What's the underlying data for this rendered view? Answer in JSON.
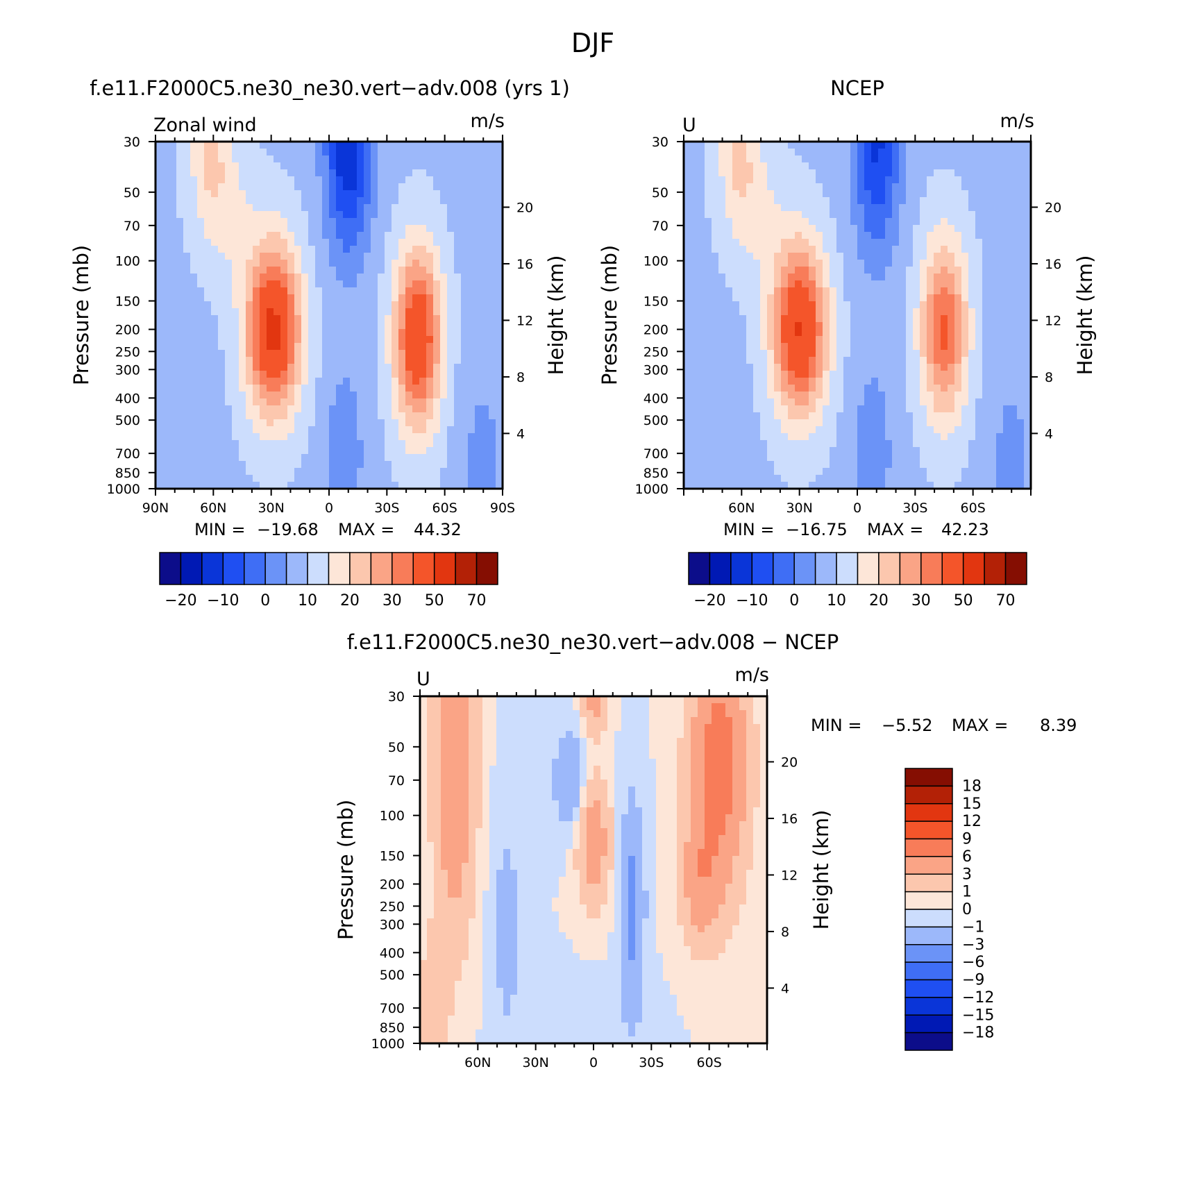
{
  "figure": {
    "title": "DJF"
  },
  "colors": {
    "model_fill_palette": [
      "#0c0d8a",
      "#0019b4",
      "#0a35d8",
      "#1f4ff2",
      "#3f6ef5",
      "#6b93f7",
      "#9cb8fa",
      "#ccddfd",
      "#fde6d8",
      "#fcc7ae",
      "#faa486",
      "#f87c59",
      "#f4552a",
      "#e23610",
      "#b32106",
      "#850e02"
    ],
    "diff_fill_palette": [
      "#0c0d8a",
      "#0019b4",
      "#0a35d8",
      "#1f4ff2",
      "#3f6ef5",
      "#6b93f7",
      "#9cb8fa",
      "#ccddfd",
      "#fde6d8",
      "#fcc7ae",
      "#faa486",
      "#f87c59",
      "#f4552a",
      "#e23610",
      "#b32106",
      "#850e02"
    ]
  },
  "chart_data": [
    {
      "type": "heatmap",
      "id": "model",
      "title": "f.e11.F2000C5.ne30_ne30.vert−adv.008 (yrs 1)",
      "left_label": "Zonal wind",
      "right_label": "m/s",
      "ylabel": "Pressure (mb)",
      "y2label": "Height (km)",
      "xticks": [
        "90N",
        "60N",
        "30N",
        "0",
        "30S",
        "60S",
        "90S"
      ],
      "xtick_values": [
        90,
        60,
        30,
        0,
        -30,
        -60,
        -90
      ],
      "xlim": [
        90,
        -90
      ],
      "yticks": [
        "30",
        "50",
        "70",
        "100",
        "150",
        "200",
        "250",
        "300",
        "400",
        "500",
        "700",
        "850",
        "1000"
      ],
      "ytick_values": [
        30,
        50,
        70,
        100,
        150,
        200,
        250,
        300,
        400,
        500,
        700,
        850,
        1000
      ],
      "ylim": [
        30,
        1000
      ],
      "y2ticks": [
        "20",
        "16",
        "12",
        "8",
        "4"
      ],
      "y2tick_values": [
        20,
        16,
        12,
        8,
        4
      ],
      "stats": {
        "min_label": "MIN =",
        "min_value": "−19.68",
        "max_label": "MAX =",
        "max_value": "44.32"
      },
      "colorbar": {
        "orientation": "horizontal",
        "tick_labels": [
          "−20",
          "−10",
          "0",
          "10",
          "20",
          "30",
          "50",
          "70"
        ]
      },
      "jets": [
        {
          "lat": 29,
          "p": 200,
          "peak": 44.3
        },
        {
          "lat": -46,
          "p": 220,
          "peak": 40
        }
      ],
      "min_value": -19.68,
      "max_value": 44.32
    },
    {
      "type": "heatmap",
      "id": "obs",
      "title": "NCEP",
      "left_label": "U",
      "right_label": "m/s",
      "ylabel": "Pressure (mb)",
      "y2label": "Height (km)",
      "xticks": [
        "60N",
        "30N",
        "0",
        "30S",
        "60S"
      ],
      "xtick_values": [
        60,
        30,
        0,
        -30,
        -60
      ],
      "xlim": [
        90,
        -90
      ],
      "yticks": [
        "30",
        "50",
        "70",
        "100",
        "150",
        "200",
        "250",
        "300",
        "400",
        "500",
        "700",
        "850",
        "1000"
      ],
      "ytick_values": [
        30,
        50,
        70,
        100,
        150,
        200,
        250,
        300,
        400,
        500,
        700,
        850,
        1000
      ],
      "ylim": [
        30,
        1000
      ],
      "y2ticks": [
        "20",
        "16",
        "12",
        "8",
        "4"
      ],
      "y2tick_values": [
        20,
        16,
        12,
        8,
        4
      ],
      "stats": {
        "min_label": "MIN =",
        "min_value": "−16.75",
        "max_label": "MAX =",
        "max_value": "42.23"
      },
      "colorbar": {
        "orientation": "horizontal",
        "tick_labels": [
          "−20",
          "−10",
          "0",
          "10",
          "20",
          "30",
          "50",
          "70"
        ]
      },
      "jets": [
        {
          "lat": 30,
          "p": 200,
          "peak": 42.2
        },
        {
          "lat": -45,
          "p": 200,
          "peak": 33
        }
      ],
      "min_value": -16.75,
      "max_value": 42.23
    },
    {
      "type": "heatmap",
      "id": "diff",
      "title": "f.e11.F2000C5.ne30_ne30.vert−adv.008 − NCEP",
      "left_label": "U",
      "right_label": "m/s",
      "ylabel": "Pressure (mb)",
      "y2label": "Height (km)",
      "xticks": [
        "60N",
        "30N",
        "0",
        "30S",
        "60S"
      ],
      "xtick_values": [
        60,
        30,
        0,
        -30,
        -60
      ],
      "xlim": [
        90,
        -90
      ],
      "yticks": [
        "30",
        "50",
        "70",
        "100",
        "150",
        "200",
        "250",
        "300",
        "400",
        "500",
        "700",
        "850",
        "1000"
      ],
      "ytick_values": [
        30,
        50,
        70,
        100,
        150,
        200,
        250,
        300,
        400,
        500,
        700,
        850,
        1000
      ],
      "ylim": [
        30,
        1000
      ],
      "y2ticks": [
        "20",
        "16",
        "12",
        "8",
        "4"
      ],
      "y2tick_values": [
        20,
        16,
        12,
        8,
        4
      ],
      "stats": {
        "min_label": "MIN =",
        "min_value": "−5.52",
        "max_label": "MAX =",
        "max_value": "8.39"
      },
      "colorbar": {
        "orientation": "vertical",
        "tick_labels": [
          "18",
          "15",
          "12",
          "9",
          "6",
          "3",
          "1",
          "0",
          "−1",
          "−3",
          "−6",
          "−9",
          "−12",
          "−15",
          "−18"
        ]
      },
      "min_value": -5.52,
      "max_value": 8.39
    }
  ]
}
